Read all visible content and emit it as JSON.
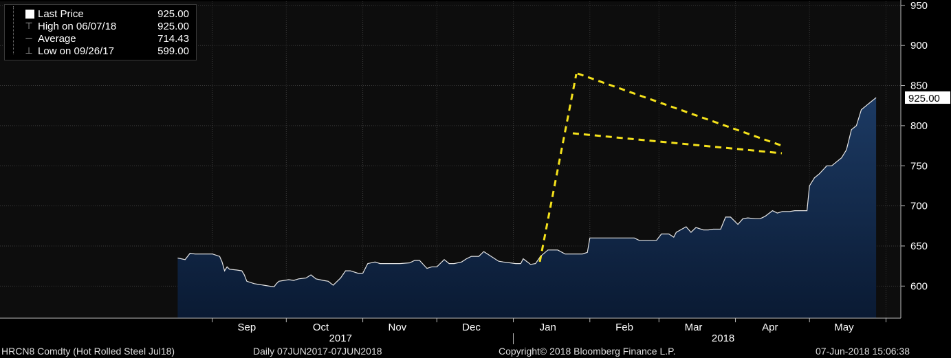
{
  "legend": [
    {
      "label": "Last Price",
      "value": "925.00",
      "icon": "square-icon"
    },
    {
      "label": "High on 06/07/18",
      "value": "925.00",
      "icon": "high-marker-icon"
    },
    {
      "label": "Average",
      "value": "714.43",
      "icon": "average-marker-icon"
    },
    {
      "label": "Low on 09/26/17",
      "value": "599.00",
      "icon": "low-marker-icon"
    }
  ],
  "last_price_tag": "925.00",
  "footer": {
    "ticker": "HRCN8 Comdty (Hot Rolled Steel  Jul18)",
    "range": "Daily 07JUN2017-07JUN2018",
    "copyright": "Copyright© 2018 Bloomberg Finance L.P.",
    "timestamp": "07-Jun-2018 15:06:38"
  },
  "colors": {
    "background": "#000000",
    "plot_background": "#0d0d0d",
    "area_top": "#1c3a63",
    "area_bottom": "#0a1a33",
    "line": "#e6e6e6",
    "annotation": "#f5e21b",
    "grid": "#3a3a3a"
  },
  "chart_data": {
    "type": "area",
    "ylim": [
      560,
      955
    ],
    "yticks": [
      600,
      650,
      700,
      750,
      800,
      850,
      900,
      950
    ],
    "ytick_labels": [
      "600",
      "650",
      "700",
      "750",
      "800",
      "850",
      "900",
      "950"
    ],
    "xlim": [
      "2017-06-07",
      "2018-06-07"
    ],
    "x_month_labels": [
      {
        "date": "2017-09-15",
        "label": "Sep"
      },
      {
        "date": "2017-10-15",
        "label": "Oct"
      },
      {
        "date": "2017-11-15",
        "label": "Nov"
      },
      {
        "date": "2017-12-15",
        "label": "Dec"
      },
      {
        "date": "2018-01-15",
        "label": "Jan"
      },
      {
        "date": "2018-02-15",
        "label": "Feb"
      },
      {
        "date": "2018-03-15",
        "label": "Mar"
      },
      {
        "date": "2018-04-15",
        "label": "Apr"
      },
      {
        "date": "2018-05-15",
        "label": "May"
      }
    ],
    "x_month_boundaries": [
      "2017-09-01",
      "2017-10-01",
      "2017-11-01",
      "2017-12-01",
      "2018-01-01",
      "2018-02-01",
      "2018-03-01",
      "2018-04-01",
      "2018-05-01",
      "2018-06-01"
    ],
    "x_year_labels": [
      {
        "date": "2017-10-23",
        "label": "2017"
      },
      {
        "date": "2018-03-27",
        "label": "2018"
      }
    ],
    "year_divider": "2018-01-01",
    "series": [
      {
        "values": [
          [
            "2017-08-18",
            635
          ],
          [
            "2017-08-21",
            633
          ],
          [
            "2017-08-23",
            641
          ],
          [
            "2017-08-25",
            640
          ],
          [
            "2017-08-29",
            640
          ],
          [
            "2017-08-31",
            640
          ],
          [
            "2017-09-01",
            640
          ],
          [
            "2017-09-04",
            637
          ],
          [
            "2017-09-05",
            630
          ],
          [
            "2017-09-06",
            619
          ],
          [
            "2017-09-07",
            624
          ],
          [
            "2017-09-08",
            621
          ],
          [
            "2017-09-11",
            620
          ],
          [
            "2017-09-13",
            619
          ],
          [
            "2017-09-14",
            614
          ],
          [
            "2017-09-15",
            606
          ],
          [
            "2017-09-18",
            603
          ],
          [
            "2017-09-20",
            602
          ],
          [
            "2017-09-22",
            601
          ],
          [
            "2017-09-26",
            599
          ],
          [
            "2017-09-27",
            603
          ],
          [
            "2017-09-28",
            606
          ],
          [
            "2017-10-02",
            608
          ],
          [
            "2017-10-04",
            607
          ],
          [
            "2017-10-06",
            609
          ],
          [
            "2017-10-09",
            610
          ],
          [
            "2017-10-11",
            614
          ],
          [
            "2017-10-13",
            609
          ],
          [
            "2017-10-16",
            607
          ],
          [
            "2017-10-18",
            606
          ],
          [
            "2017-10-20",
            601
          ],
          [
            "2017-10-23",
            610
          ],
          [
            "2017-10-25",
            619
          ],
          [
            "2017-10-27",
            619
          ],
          [
            "2017-10-30",
            616
          ],
          [
            "2017-11-01",
            616
          ],
          [
            "2017-11-03",
            628
          ],
          [
            "2017-11-06",
            630
          ],
          [
            "2017-11-08",
            628
          ],
          [
            "2017-11-13",
            628
          ],
          [
            "2017-11-16",
            628
          ],
          [
            "2017-11-20",
            629
          ],
          [
            "2017-11-22",
            632
          ],
          [
            "2017-11-24",
            632
          ],
          [
            "2017-11-27",
            622
          ],
          [
            "2017-11-29",
            624
          ],
          [
            "2017-12-01",
            624
          ],
          [
            "2017-12-04",
            633
          ],
          [
            "2017-12-06",
            628
          ],
          [
            "2017-12-08",
            628
          ],
          [
            "2017-12-11",
            630
          ],
          [
            "2017-12-13",
            634
          ],
          [
            "2017-12-15",
            637
          ],
          [
            "2017-12-18",
            637
          ],
          [
            "2017-12-20",
            643
          ],
          [
            "2017-12-22",
            639
          ],
          [
            "2017-12-26",
            631
          ],
          [
            "2017-12-28",
            630
          ],
          [
            "2018-01-02",
            628
          ],
          [
            "2018-01-04",
            628
          ],
          [
            "2018-01-05",
            634
          ],
          [
            "2018-01-08",
            627
          ],
          [
            "2018-01-10",
            628
          ],
          [
            "2018-01-12",
            637
          ],
          [
            "2018-01-15",
            645
          ],
          [
            "2018-01-17",
            645
          ],
          [
            "2018-01-19",
            645
          ],
          [
            "2018-01-22",
            640
          ],
          [
            "2018-01-24",
            640
          ],
          [
            "2018-01-26",
            640
          ],
          [
            "2018-01-29",
            640
          ],
          [
            "2018-01-31",
            642
          ],
          [
            "2018-02-01",
            660
          ],
          [
            "2018-02-05",
            660
          ],
          [
            "2018-02-08",
            660
          ],
          [
            "2018-02-12",
            660
          ],
          [
            "2018-02-15",
            660
          ],
          [
            "2018-02-19",
            660
          ],
          [
            "2018-02-21",
            657
          ],
          [
            "2018-02-23",
            657
          ],
          [
            "2018-02-26",
            657
          ],
          [
            "2018-02-28",
            657
          ],
          [
            "2018-03-02",
            665
          ],
          [
            "2018-03-05",
            665
          ],
          [
            "2018-03-07",
            661
          ],
          [
            "2018-03-08",
            667
          ],
          [
            "2018-03-12",
            674
          ],
          [
            "2018-03-14",
            667
          ],
          [
            "2018-03-16",
            673
          ],
          [
            "2018-03-19",
            670
          ],
          [
            "2018-03-21",
            670
          ],
          [
            "2018-03-23",
            671
          ],
          [
            "2018-03-26",
            671
          ],
          [
            "2018-03-28",
            686
          ],
          [
            "2018-03-30",
            686
          ],
          [
            "2018-04-02",
            677
          ],
          [
            "2018-04-04",
            684
          ],
          [
            "2018-04-06",
            685
          ],
          [
            "2018-04-09",
            684
          ],
          [
            "2018-04-11",
            684
          ],
          [
            "2018-04-13",
            687
          ],
          [
            "2018-04-16",
            694
          ],
          [
            "2018-04-18",
            691
          ],
          [
            "2018-04-20",
            693
          ],
          [
            "2018-04-23",
            693
          ],
          [
            "2018-04-25",
            694
          ],
          [
            "2018-04-27",
            694
          ],
          [
            "2018-04-30",
            694
          ],
          [
            "2018-05-01",
            725
          ],
          [
            "2018-05-03",
            735
          ],
          [
            "2018-05-05",
            740
          ],
          [
            "2018-05-08",
            750
          ],
          [
            "2018-05-10",
            750
          ],
          [
            "2018-05-14",
            760
          ],
          [
            "2018-05-16",
            770
          ],
          [
            "2018-05-18",
            795
          ],
          [
            "2018-05-20",
            800
          ],
          [
            "2018-05-22",
            820
          ],
          [
            "2018-05-24",
            825
          ],
          [
            "2018-05-26",
            830
          ],
          [
            "2018-05-28",
            835
          ]
        ]
      }
    ]
  }
}
